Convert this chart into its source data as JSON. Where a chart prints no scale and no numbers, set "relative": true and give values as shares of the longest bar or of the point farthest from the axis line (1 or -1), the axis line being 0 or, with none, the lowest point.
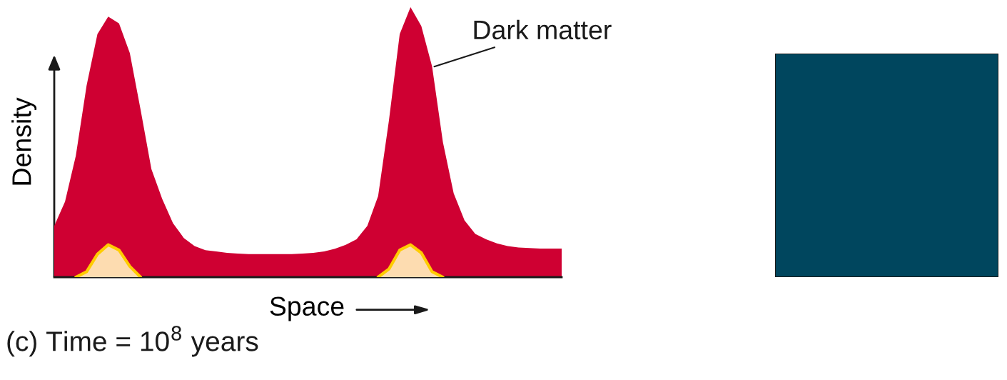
{
  "chart_data": {
    "type": "area",
    "title": "(c) Time = 10$^{8}$ years",
    "xlabel": "Space",
    "ylabel": "Density",
    "relative": true,
    "categories": [
      null,
      null,
      null,
      null,
      null,
      null,
      null,
      null,
      null,
      null,
      null,
      null,
      null,
      null,
      null,
      null,
      null,
      null,
      null,
      null,
      null,
      null,
      null,
      null,
      null,
      null,
      null,
      null,
      null,
      null,
      null,
      null,
      null,
      null,
      null,
      null,
      null,
      null,
      null,
      null,
      null,
      null,
      null,
      null,
      null,
      null,
      null,
      null
    ],
    "series": [
      {
        "name": "Dark matter",
        "color": "#cf0032",
        "values": [
          0.19,
          0.28,
          0.45,
          0.71,
          0.9,
          0.965,
          0.94,
          0.83,
          0.62,
          0.4,
          0.29,
          0.2,
          0.145,
          0.115,
          0.1,
          0.095,
          0.09,
          0.087,
          0.085,
          0.085,
          0.085,
          0.085,
          0.085,
          0.087,
          0.09,
          0.095,
          0.105,
          0.12,
          0.14,
          0.19,
          0.3,
          0.58,
          0.9,
          1.0,
          0.93,
          0.78,
          0.5,
          0.31,
          0.21,
          0.16,
          0.14,
          0.125,
          0.115,
          0.11,
          0.108,
          0.106,
          0.106,
          0.106
        ]
      },
      {
        "color": "#fddcb0",
        "values": [
          null,
          null,
          0,
          0.02,
          0.085,
          0.12,
          0.1,
          0.04,
          0,
          null,
          null,
          null,
          null,
          null,
          null,
          null,
          null,
          null,
          null,
          null,
          null,
          null,
          null,
          null,
          null,
          null,
          null,
          null,
          null,
          null,
          0,
          0.03,
          0.1,
          0.12,
          0.09,
          0.02,
          0,
          null,
          null,
          null,
          null,
          null,
          null,
          null,
          null,
          null,
          null,
          null
        ]
      }
    ]
  }
}
